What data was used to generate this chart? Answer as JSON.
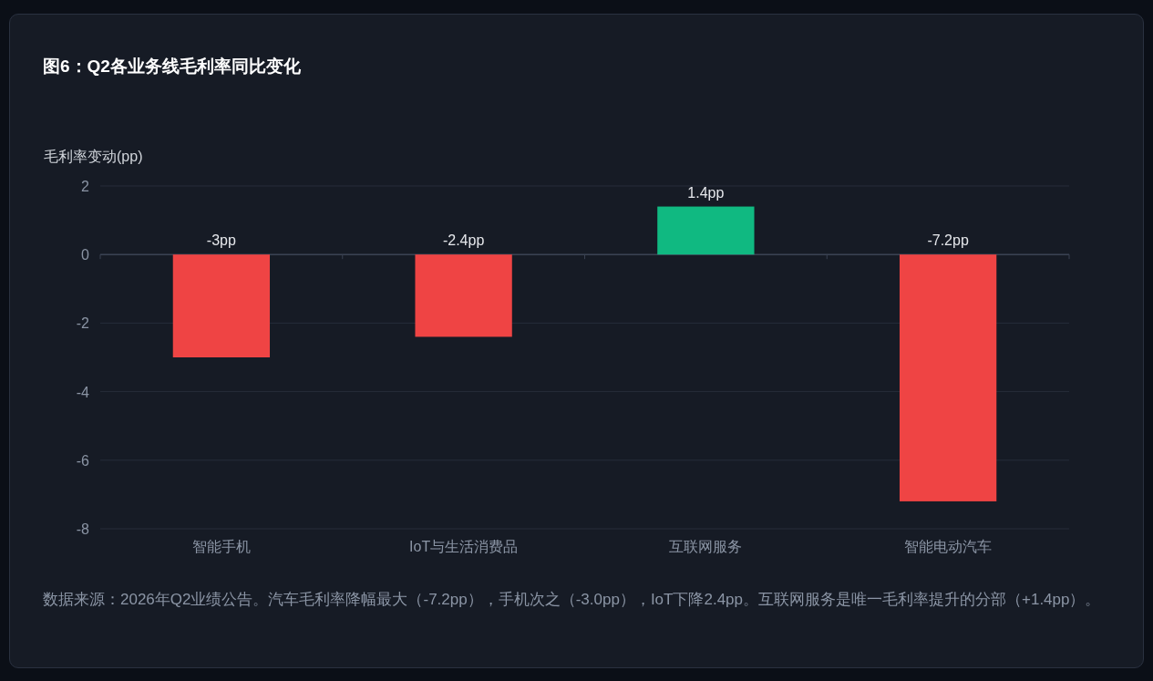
{
  "chart_data": {
    "type": "bar",
    "title": "图6：Q2各业务线毛利率同比变化",
    "ylabel": "毛利率变动(pp)",
    "categories": [
      "智能手机",
      "IoT与生活消费品",
      "互联网服务",
      "智能电动汽车"
    ],
    "values": [
      -3,
      -2.4,
      1.4,
      -7.2
    ],
    "colors": [
      "#ef4444",
      "#ef4444",
      "#10b981",
      "#ef4444"
    ],
    "value_labels": [
      "-3pp",
      "-2.4pp",
      "1.4pp",
      "-7.2pp"
    ],
    "ylim": [
      -8,
      2
    ],
    "yticks": [
      -8,
      -6,
      -4,
      -2,
      0,
      2
    ],
    "grid": "y",
    "annotations": [
      "数据来源：2026年Q2业绩公告。汽车毛利率降幅最大（-7.2pp），手机次之（-3.0pp），IoT下降2.4pp。互联网服务是唯一毛利率提升的分部（+1.4pp）。"
    ]
  }
}
